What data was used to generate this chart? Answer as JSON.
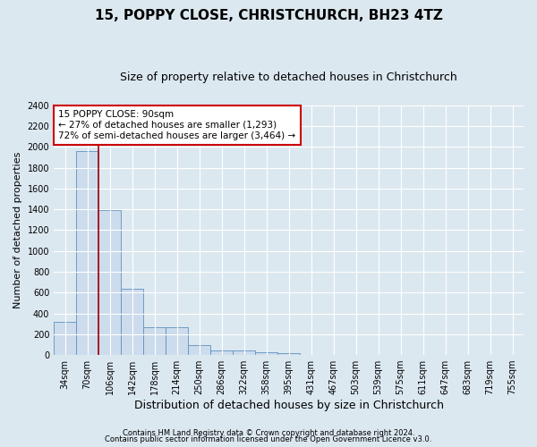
{
  "title": "15, POPPY CLOSE, CHRISTCHURCH, BH23 4TZ",
  "subtitle": "Size of property relative to detached houses in Christchurch",
  "xlabel": "Distribution of detached houses by size in Christchurch",
  "ylabel": "Number of detached properties",
  "footnote1": "Contains HM Land Registry data © Crown copyright and database right 2024.",
  "footnote2": "Contains public sector information licensed under the Open Government Licence v3.0.",
  "bar_labels": [
    "34sqm",
    "70sqm",
    "106sqm",
    "142sqm",
    "178sqm",
    "214sqm",
    "250sqm",
    "286sqm",
    "322sqm",
    "358sqm",
    "395sqm",
    "431sqm",
    "467sqm",
    "503sqm",
    "539sqm",
    "575sqm",
    "611sqm",
    "647sqm",
    "683sqm",
    "719sqm",
    "755sqm"
  ],
  "bar_values": [
    320,
    1960,
    1390,
    640,
    265,
    265,
    95,
    45,
    40,
    25,
    15,
    0,
    0,
    0,
    0,
    0,
    0,
    0,
    0,
    0,
    0
  ],
  "bar_color": "#ccdcec",
  "bar_edge_color": "#6090c0",
  "ylim": [
    0,
    2400
  ],
  "yticks": [
    0,
    200,
    400,
    600,
    800,
    1000,
    1200,
    1400,
    1600,
    1800,
    2000,
    2200,
    2400
  ],
  "vline_x": 1.5,
  "annotation_text": "15 POPPY CLOSE: 90sqm\n← 27% of detached houses are smaller (1,293)\n72% of semi-detached houses are larger (3,464) →",
  "annotation_box_color": "#ffffff",
  "annotation_box_edge": "#cc0000",
  "vline_color": "#aa0000",
  "bg_color": "#dce8f0",
  "plot_bg_color": "#dce8f0",
  "grid_color": "#ffffff",
  "title_fontsize": 11,
  "subtitle_fontsize": 9,
  "ylabel_fontsize": 8,
  "xlabel_fontsize": 9,
  "annot_fontsize": 7.5,
  "tick_fontsize": 7,
  "footnote_fontsize": 6
}
